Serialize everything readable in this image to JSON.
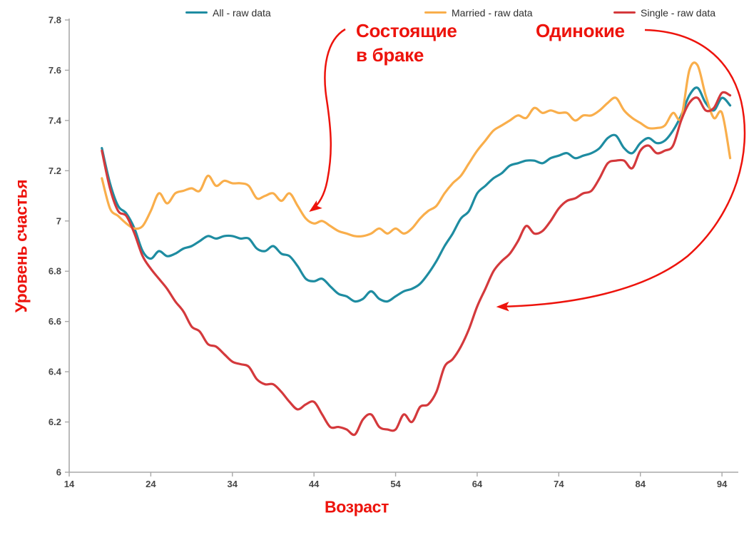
{
  "page": {
    "background": "#FFFFFF"
  },
  "legend": {
    "items": [
      {
        "label": "All - raw data",
        "color": "#1E8CA1"
      },
      {
        "label": "Married - raw data",
        "color": "#F9AE4B"
      },
      {
        "label": "Single - raw data",
        "color": "#D4393C"
      }
    ]
  },
  "chart_data": {
    "type": "line",
    "title": "",
    "xlabel": "Возраст",
    "ylabel": "Уровень счастья",
    "axis_title_color": "#ED130C",
    "annotation_color": "#ED130C",
    "axis_color": "#A8A8A8",
    "grid": false,
    "legend_position": "top",
    "xlim": [
      14,
      96
    ],
    "ylim": [
      6,
      7.8
    ],
    "x_ticks": [
      "14",
      "24",
      "34",
      "44",
      "54",
      "64",
      "74",
      "84",
      "94"
    ],
    "y_ticks": [
      "6",
      "6.2",
      "6.4",
      "6.6",
      "6.8",
      "7",
      "7.2",
      "7.4",
      "7.6",
      "7.8"
    ],
    "x": [
      18,
      19,
      20,
      21,
      22,
      23,
      24,
      25,
      26,
      27,
      28,
      29,
      30,
      31,
      32,
      33,
      34,
      35,
      36,
      37,
      38,
      39,
      40,
      41,
      42,
      43,
      44,
      45,
      46,
      47,
      48,
      49,
      50,
      51,
      52,
      53,
      54,
      55,
      56,
      57,
      58,
      59,
      60,
      61,
      62,
      63,
      64,
      65,
      66,
      67,
      68,
      69,
      70,
      71,
      72,
      73,
      74,
      75,
      76,
      77,
      78,
      79,
      80,
      81,
      82,
      83,
      84,
      85,
      86,
      87,
      88,
      89,
      90,
      91,
      92,
      93,
      94,
      95
    ],
    "series": [
      {
        "name": "All - raw data",
        "color": "#1E8CA1",
        "values": [
          7.29,
          7.15,
          7.06,
          7.03,
          6.97,
          6.88,
          6.85,
          6.88,
          6.86,
          6.87,
          6.89,
          6.9,
          6.92,
          6.94,
          6.93,
          6.94,
          6.94,
          6.93,
          6.93,
          6.89,
          6.88,
          6.9,
          6.87,
          6.86,
          6.82,
          6.77,
          6.76,
          6.77,
          6.74,
          6.71,
          6.7,
          6.68,
          6.69,
          6.72,
          6.69,
          6.68,
          6.7,
          6.72,
          6.73,
          6.75,
          6.79,
          6.84,
          6.9,
          6.95,
          7.01,
          7.04,
          7.11,
          7.14,
          7.17,
          7.19,
          7.22,
          7.23,
          7.24,
          7.24,
          7.23,
          7.25,
          7.26,
          7.27,
          7.25,
          7.26,
          7.27,
          7.29,
          7.33,
          7.34,
          7.29,
          7.27,
          7.31,
          7.33,
          7.31,
          7.32,
          7.36,
          7.42,
          7.5,
          7.53,
          7.47,
          7.44,
          7.49,
          7.46
        ]
      },
      {
        "name": "Married - raw data",
        "color": "#F9AE4B",
        "values": [
          7.17,
          7.05,
          7.02,
          6.99,
          6.97,
          6.98,
          7.04,
          7.11,
          7.07,
          7.11,
          7.12,
          7.13,
          7.12,
          7.18,
          7.14,
          7.16,
          7.15,
          7.15,
          7.14,
          7.09,
          7.1,
          7.11,
          7.08,
          7.11,
          7.06,
          7.01,
          6.99,
          7.0,
          6.98,
          6.96,
          6.95,
          6.94,
          6.94,
          6.95,
          6.97,
          6.95,
          6.97,
          6.95,
          6.97,
          7.01,
          7.04,
          7.06,
          7.11,
          7.15,
          7.18,
          7.23,
          7.28,
          7.32,
          7.36,
          7.38,
          7.4,
          7.42,
          7.41,
          7.45,
          7.43,
          7.44,
          7.43,
          7.43,
          7.4,
          7.42,
          7.42,
          7.44,
          7.47,
          7.49,
          7.44,
          7.41,
          7.39,
          7.37,
          7.37,
          7.38,
          7.43,
          7.41,
          7.6,
          7.62,
          7.5,
          7.41,
          7.43,
          7.25
        ]
      },
      {
        "name": "Single - raw data",
        "color": "#D4393C",
        "values": [
          7.28,
          7.13,
          7.04,
          7.02,
          6.95,
          6.86,
          6.81,
          6.77,
          6.73,
          6.68,
          6.64,
          6.58,
          6.56,
          6.51,
          6.5,
          6.47,
          6.44,
          6.43,
          6.42,
          6.37,
          6.35,
          6.35,
          6.32,
          6.28,
          6.25,
          6.27,
          6.28,
          6.23,
          6.18,
          6.18,
          6.17,
          6.15,
          6.21,
          6.23,
          6.18,
          6.17,
          6.17,
          6.23,
          6.2,
          6.26,
          6.27,
          6.32,
          6.42,
          6.45,
          6.5,
          6.57,
          6.66,
          6.73,
          6.8,
          6.84,
          6.87,
          6.92,
          6.98,
          6.95,
          6.96,
          7.0,
          7.05,
          7.08,
          7.09,
          7.11,
          7.12,
          7.17,
          7.23,
          7.24,
          7.24,
          7.21,
          7.28,
          7.3,
          7.27,
          7.28,
          7.3,
          7.4,
          7.47,
          7.49,
          7.44,
          7.45,
          7.51,
          7.5
        ]
      }
    ],
    "annotations": [
      {
        "text": "Состоящие\nв браке",
        "color": "#ED130C",
        "points_to": "Married - raw data"
      },
      {
        "text": "Одинокие",
        "color": "#ED130C",
        "points_to": "Single - raw data"
      }
    ]
  }
}
